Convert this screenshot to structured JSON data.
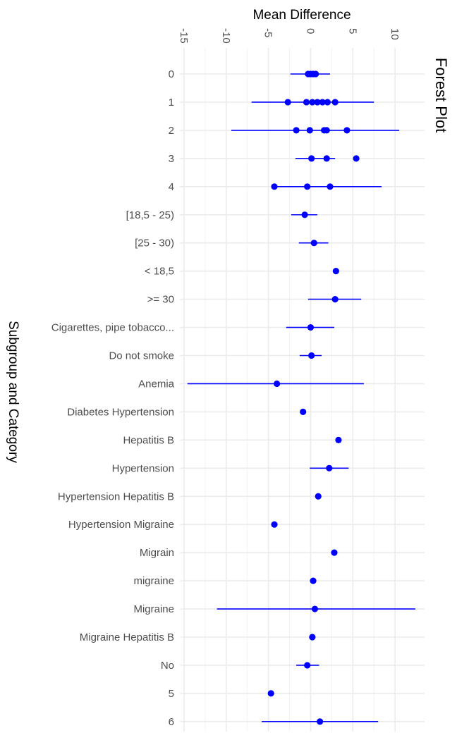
{
  "chart_data": {
    "type": "scatter",
    "title": "Forest Plot",
    "xlabel": "Mean Difference",
    "ylabel": "Subgroup and Category",
    "xlim": [
      -15.5,
      13.5
    ],
    "x_ticks": [
      -15,
      -10,
      -5,
      0,
      5,
      10
    ],
    "x_tick_labels": [
      "-15",
      "-10",
      "-5",
      "0",
      "5",
      "10"
    ],
    "grid": true,
    "point_color": "#0000ff",
    "categories": [
      "0",
      "1",
      "2",
      "3",
      "4",
      "[18,5 - 25)",
      "[25 - 30)",
      "< 18,5",
      ">= 30",
      "Cigarettes, pipe tobacco...",
      "Do not smoke",
      "Anemia",
      "Diabetes Hypertension",
      "Hepatitis B",
      "Hypertension",
      "Hypertension Hepatitis B",
      "Hypertension Migraine",
      "Migrain",
      "migraine",
      "Migraine",
      "Migraine Hepatitis B",
      "No",
      "5",
      "6"
    ],
    "intervals": [
      {
        "category": "0",
        "low": -2.4,
        "high": 2.3
      },
      {
        "category": "1",
        "low": -7.0,
        "high": 7.5
      },
      {
        "category": "2",
        "low": -9.4,
        "high": 10.5
      },
      {
        "category": "3",
        "low": -1.8,
        "high": 2.9
      },
      {
        "category": "4",
        "low": -4.3,
        "high": 8.4
      },
      {
        "category": "[18,5 - 25)",
        "low": -2.3,
        "high": 0.8
      },
      {
        "category": "[25 - 30)",
        "low": -1.4,
        "high": 2.1
      },
      {
        "category": ">= 30",
        "low": -0.3,
        "high": 6.0
      },
      {
        "category": "Cigarettes, pipe tobacco...",
        "low": -2.9,
        "high": 2.8
      },
      {
        "category": "Do not smoke",
        "low": -1.3,
        "high": 1.3
      },
      {
        "category": "Anemia",
        "low": -14.6,
        "high": 6.3
      },
      {
        "category": "Hypertension",
        "low": -0.1,
        "high": 4.5
      },
      {
        "category": "Migraine",
        "low": -11.1,
        "high": 12.4
      },
      {
        "category": "No",
        "low": -1.7,
        "high": 1.0
      },
      {
        "category": "6",
        "low": -5.8,
        "high": 8.0
      }
    ],
    "points": [
      {
        "category": "0",
        "x": -0.3
      },
      {
        "category": "0",
        "x": 0.0
      },
      {
        "category": "0",
        "x": 0.3
      },
      {
        "category": "0",
        "x": 0.6
      },
      {
        "category": "1",
        "x": -2.7
      },
      {
        "category": "1",
        "x": -0.5
      },
      {
        "category": "1",
        "x": 0.2
      },
      {
        "category": "1",
        "x": 0.8
      },
      {
        "category": "1",
        "x": 1.4
      },
      {
        "category": "1",
        "x": 2.0
      },
      {
        "category": "1",
        "x": 2.9
      },
      {
        "category": "2",
        "x": -1.7
      },
      {
        "category": "2",
        "x": -0.1
      },
      {
        "category": "2",
        "x": 1.6
      },
      {
        "category": "2",
        "x": 1.9
      },
      {
        "category": "2",
        "x": 4.3
      },
      {
        "category": "3",
        "x": 0.1
      },
      {
        "category": "3",
        "x": 1.9
      },
      {
        "category": "3",
        "x": 5.4
      },
      {
        "category": "4",
        "x": -4.3
      },
      {
        "category": "4",
        "x": -0.4
      },
      {
        "category": "4",
        "x": 2.3
      },
      {
        "category": "[18,5 - 25)",
        "x": -0.7
      },
      {
        "category": "[25 - 30)",
        "x": 0.4
      },
      {
        "category": "< 18,5",
        "x": 3.0
      },
      {
        "category": ">= 30",
        "x": 2.9
      },
      {
        "category": "Cigarettes, pipe tobacco...",
        "x": 0.0
      },
      {
        "category": "Do not smoke",
        "x": 0.1
      },
      {
        "category": "Anemia",
        "x": -4.0
      },
      {
        "category": "Diabetes Hypertension",
        "x": -0.9
      },
      {
        "category": "Hepatitis B",
        "x": 3.3
      },
      {
        "category": "Hypertension",
        "x": 2.2
      },
      {
        "category": "Hypertension Hepatitis B",
        "x": 0.9
      },
      {
        "category": "Hypertension Migraine",
        "x": -4.3
      },
      {
        "category": "Migrain",
        "x": 2.8
      },
      {
        "category": "migraine",
        "x": 0.3
      },
      {
        "category": "Migraine",
        "x": 0.5
      },
      {
        "category": "Migraine Hepatitis B",
        "x": 0.2
      },
      {
        "category": "No",
        "x": -0.4
      },
      {
        "category": "5",
        "x": -4.7
      },
      {
        "category": "6",
        "x": 1.1
      }
    ]
  }
}
